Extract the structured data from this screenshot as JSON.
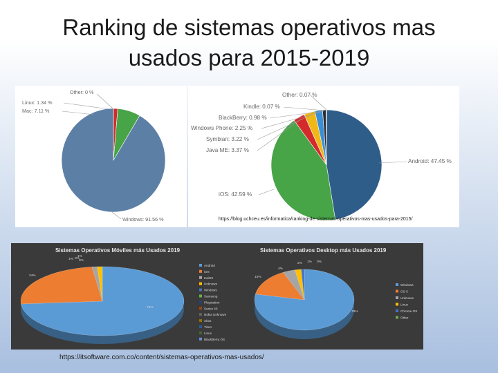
{
  "title": {
    "line1": "Ranking de sistemas operativos mas",
    "line2": "usados para 2015-2019"
  },
  "sources": {
    "top": "https://blog.uchceu.es/informatica/ranking-de-sistemas-operativos-mas-usados-para-2015/",
    "bottom": "https://itsoftware.com.co/content/sistemas-operativos-mas-usados/"
  },
  "chart_data": [
    {
      "type": "pie",
      "title": "",
      "slices": [
        {
          "label": "Windows",
          "value": 91.56,
          "display": "Windows: 91.56 %",
          "color": "#5c7fa6"
        },
        {
          "label": "Mac",
          "value": 7.11,
          "display": "Mac: 7.11 %",
          "color": "#47a447"
        },
        {
          "label": "Linux",
          "value": 1.34,
          "display": "Linux: 1.34 %",
          "color": "#d32b2b"
        },
        {
          "label": "Other",
          "value": 0,
          "display": "Other: 0 %",
          "color": "#e8a313"
        }
      ]
    },
    {
      "type": "pie",
      "title": "",
      "slices": [
        {
          "label": "Android",
          "value": 47.45,
          "display": "Android: 47.45 %",
          "color": "#2f5d8a"
        },
        {
          "label": "iOS",
          "value": 42.59,
          "display": "iOS: 42.59 %",
          "color": "#47a447"
        },
        {
          "label": "Java ME",
          "value": 3.37,
          "display": "Java ME: 3.37 %",
          "color": "#d32b2b"
        },
        {
          "label": "Symbian",
          "value": 3.22,
          "display": "Symbian: 3.22 %",
          "color": "#f0b816"
        },
        {
          "label": "Windows Phone",
          "value": 2.25,
          "display": "Windows Phone: 2.25 %",
          "color": "#3c8fd6"
        },
        {
          "label": "BlackBerry",
          "value": 0.98,
          "display": "BlackBerry: 0.98 %",
          "color": "#2c2c2c"
        },
        {
          "label": "Kindle",
          "value": 0.07,
          "display": "Kindle: 0.07 %",
          "color": "#8a8a8a"
        },
        {
          "label": "Other",
          "value": 0.07,
          "display": "Other: 0.07 %",
          "color": "#c060c0"
        }
      ]
    },
    {
      "type": "pie",
      "title": "Sistemas Operativos Móviles más Usados 2019",
      "slices": [
        {
          "label": "Android",
          "value": 73,
          "display": "73%",
          "color": "#5b9bd5"
        },
        {
          "label": "iOS",
          "value": 24,
          "display": "24%",
          "color": "#ed7d31"
        },
        {
          "label": "KaiOS",
          "value": 1,
          "display": "1%",
          "color": "#a5a5a5"
        },
        {
          "label": "Unknown",
          "value": 1,
          "display": "1%",
          "color": "#ffc000"
        },
        {
          "label": "Windows",
          "value": 0,
          "display": "0%",
          "color": "#4472c4"
        },
        {
          "label": "Samsung",
          "value": 0,
          "display": "0%",
          "color": "#70ad47"
        },
        {
          "label": "Playstation",
          "value": 0,
          "display": "0%",
          "color": "#264478"
        },
        {
          "label": "Series 40",
          "value": 0,
          "display": "0%",
          "color": "#9e480e"
        },
        {
          "label": "Nokia Unknown",
          "value": 0,
          "display": "0%",
          "color": "#636363"
        },
        {
          "label": "Xbox",
          "value": 0,
          "display": "0%",
          "color": "#997300"
        },
        {
          "label": "Tizen",
          "value": 0,
          "display": "0%",
          "color": "#255e91"
        },
        {
          "label": "Linux",
          "value": 0,
          "display": "0%",
          "color": "#43682b"
        },
        {
          "label": "BlackBerry OS",
          "value": 0,
          "display": "0%",
          "color": "#698ed0"
        }
      ]
    },
    {
      "type": "pie",
      "title": "Sistemas Operativos Desktop más Usados 2019",
      "slices": [
        {
          "label": "Windows",
          "value": 78,
          "display": "78%",
          "color": "#5b9bd5"
        },
        {
          "label": "OS X",
          "value": 15,
          "display": "15%",
          "color": "#ed7d31"
        },
        {
          "label": "Unknown",
          "value": 4,
          "display": "4%",
          "color": "#a5a5a5"
        },
        {
          "label": "Linux",
          "value": 2,
          "display": "2%",
          "color": "#ffc000"
        },
        {
          "label": "Chrome OS",
          "value": 1,
          "display": "1%",
          "color": "#4472c4"
        },
        {
          "label": "Other",
          "value": 0,
          "display": "0%",
          "color": "#70ad47"
        }
      ]
    }
  ]
}
